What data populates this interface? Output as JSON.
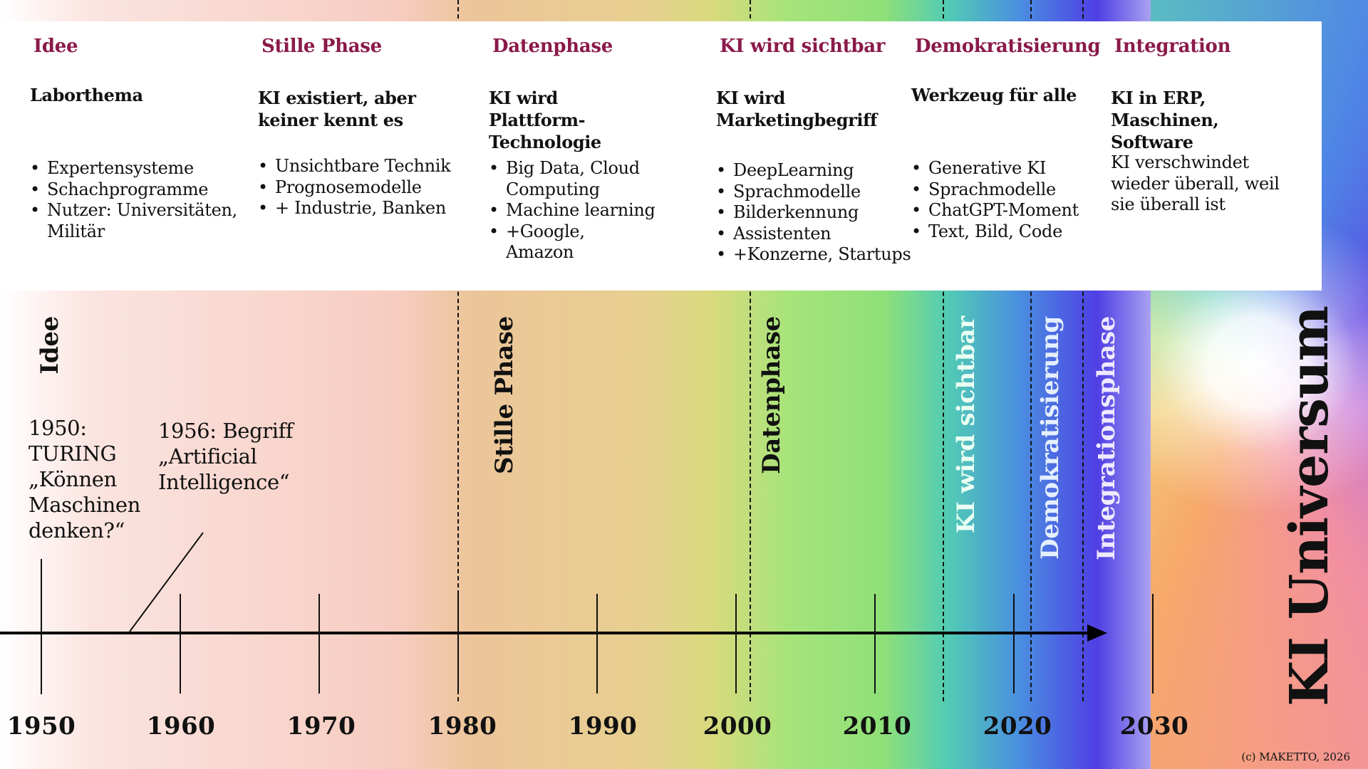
{
  "columns": [
    {
      "title": "Idee",
      "subtitle": "Laborthema",
      "bullets": [
        "Expertensysteme",
        "Schachprogramme",
        "Nutzer: Universitäten, Militär"
      ]
    },
    {
      "title": "Stille Phase",
      "subtitle": "KI existiert, aber keiner kennt es",
      "bullets": [
        "Unsichtbare Technik",
        "Prognosemodelle",
        "+ Industrie, Banken"
      ]
    },
    {
      "title": "Datenphase",
      "subtitle": "KI wird Plattform-Technologie",
      "bullets": [
        "Big Data, Cloud Computing",
        "Machine learning",
        "+Google, Amazon"
      ]
    },
    {
      "title": "KI wird sichtbar",
      "subtitle": "KI wird Marketingbegriff",
      "bullets": [
        "DeepLearning",
        "Sprachmodelle",
        "Bilderkennung",
        "Assistenten",
        "+Konzerne, Startups"
      ]
    },
    {
      "title": "Demokratisierung",
      "subtitle": "Werkzeug für alle",
      "bullets": [
        "Generative KI",
        "Sprachmodelle",
        "ChatGPT-Moment",
        "Text, Bild, Code"
      ]
    },
    {
      "title": "Integration",
      "subtitle": "KI in ERP, Maschinen, Software",
      "text": "KI verschwindet wieder überall, weil sie überall ist"
    }
  ],
  "phases": [
    {
      "label": "Idee",
      "year": 1950
    },
    {
      "label": "Stille Phase",
      "year": 1980
    },
    {
      "label": "Datenphase",
      "year": 2001
    },
    {
      "label": "KI wird sichtbar",
      "year": 2015
    },
    {
      "label": "Demokratisierung",
      "year": 2021.3
    },
    {
      "label": "Integrationsphase",
      "year": 2025
    }
  ],
  "events": {
    "turing": "1950: TURING „Können Maschinen denken?“",
    "term": "1956: Begriff „Artificial Intelligence“"
  },
  "axis": {
    "years": [
      "1950",
      "1960",
      "1970",
      "1980",
      "1990",
      "2000",
      "2010",
      "2020",
      "2030"
    ]
  },
  "title": "KI Universum",
  "copyright": "(c) MAKETTO, 2026"
}
